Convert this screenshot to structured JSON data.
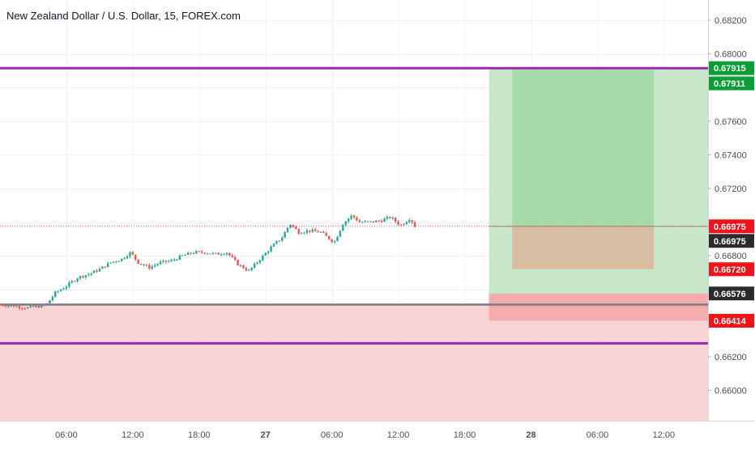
{
  "title": "New Zealand Dollar / U.S. Dollar, 15, FOREX.com",
  "colors": {
    "up": "#26a69a",
    "down": "#ef5350",
    "purple_line": "#9c27b0",
    "gray_line": "#787b86",
    "profit_zone": "#c8e6c9",
    "loss_zone": "#f5c6c6",
    "price_line": "#ef5350"
  },
  "chart_data": {
    "type": "candlestick",
    "symbol": "New Zealand Dollar / U.S. Dollar",
    "interval": "15",
    "source": "FOREX.com",
    "ylim": [
      0.6582,
      0.6832
    ],
    "y_ticks": [
      "0.68200",
      "0.68000",
      "0.67600",
      "0.67400",
      "0.67200",
      "0.66800",
      "0.66200",
      "0.66000"
    ],
    "x_ticks": [
      {
        "label": "06:00",
        "t": 6
      },
      {
        "label": "12:00",
        "t": 12
      },
      {
        "label": "18:00",
        "t": 18
      },
      {
        "label": "27",
        "t": 24
      },
      {
        "label": "06:00",
        "t": 30
      },
      {
        "label": "12:00",
        "t": 36
      },
      {
        "label": "18:00",
        "t": 42
      },
      {
        "label": "28",
        "t": 48
      },
      {
        "label": "06:00",
        "t": 54
      },
      {
        "label": "12:00",
        "t": 60
      }
    ],
    "xlim": [
      0,
      64
    ],
    "close_path": [
      [
        0,
        0.6651
      ],
      [
        1.5,
        0.665
      ],
      [
        2.5,
        0.6649
      ],
      [
        3.5,
        0.665
      ],
      [
        4.2,
        0.6651
      ],
      [
        5,
        0.6658
      ],
      [
        6,
        0.6662
      ],
      [
        7,
        0.6667
      ],
      [
        8,
        0.6669
      ],
      [
        9,
        0.6672
      ],
      [
        10,
        0.6676
      ],
      [
        11,
        0.6678
      ],
      [
        11.8,
        0.6682
      ],
      [
        12.5,
        0.6676
      ],
      [
        13.5,
        0.6673
      ],
      [
        14.5,
        0.6676
      ],
      [
        15.5,
        0.6677
      ],
      [
        16.5,
        0.668
      ],
      [
        17.5,
        0.6682
      ],
      [
        18.5,
        0.6682
      ],
      [
        19.5,
        0.6681
      ],
      [
        20.5,
        0.6682
      ],
      [
        21.5,
        0.6675
      ],
      [
        22.5,
        0.6671
      ],
      [
        23.5,
        0.6678
      ],
      [
        24.5,
        0.6685
      ],
      [
        25.5,
        0.6691
      ],
      [
        26.2,
        0.6699
      ],
      [
        27,
        0.6694
      ],
      [
        28,
        0.6695
      ],
      [
        29,
        0.6694
      ],
      [
        30.2,
        0.6688
      ],
      [
        31,
        0.6699
      ],
      [
        31.8,
        0.6704
      ],
      [
        32.5,
        0.67
      ],
      [
        33.5,
        0.67
      ],
      [
        34.5,
        0.6701
      ],
      [
        35.3,
        0.6703
      ],
      [
        36.2,
        0.6698
      ],
      [
        37,
        0.6702
      ],
      [
        37.7,
        0.66975
      ]
    ],
    "last_price": "0.66975",
    "horizontal_lines": [
      {
        "name": "upper-purple",
        "value": 0.67915,
        "color": "purple"
      },
      {
        "name": "gray",
        "value": 0.6651,
        "color": "gray"
      },
      {
        "name": "lower-purple",
        "value": 0.6628,
        "color": "purple"
      }
    ],
    "position": {
      "t_start": 44.2,
      "t_end": 64,
      "inner_t_start": 46.3,
      "inner_t_end": 59.1,
      "entry": 0.66975,
      "target_outer": 0.67915,
      "stop_outer": 0.66414,
      "inner_lower": 0.66576,
      "inner_stop": 0.6672
    },
    "price_labels": [
      {
        "text": "0.67915",
        "value": 0.67915,
        "kind": "green"
      },
      {
        "text": "0.67911",
        "value": 0.67911,
        "kind": "green",
        "offset": 1
      },
      {
        "text": "0.66975",
        "value": 0.66975,
        "kind": "red"
      },
      {
        "text": "0.66975",
        "value": 0.66975,
        "kind": "dark",
        "offset": 1
      },
      {
        "text": "0.66720",
        "value": 0.6672,
        "kind": "red"
      },
      {
        "text": "0.66576",
        "value": 0.66576,
        "kind": "dark"
      },
      {
        "text": "0.66414",
        "value": 0.66414,
        "kind": "red"
      }
    ]
  }
}
